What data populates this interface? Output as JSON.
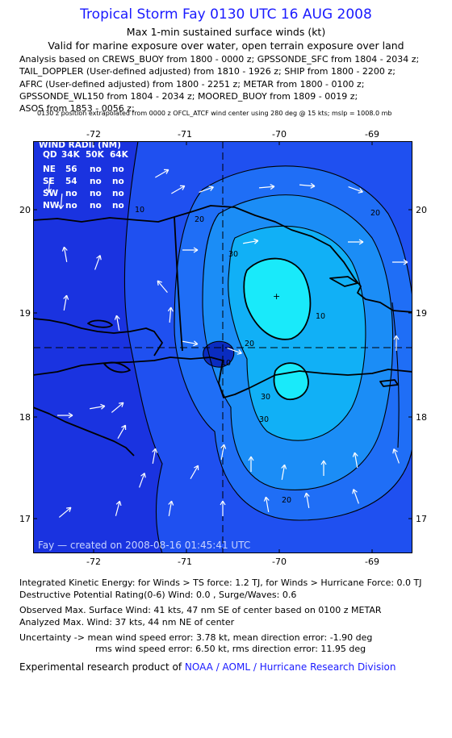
{
  "header": {
    "title": "Tropical Storm Fay 0130 UTC 16 AUG 2008",
    "subtitle1": "Max 1-min sustained surface winds (kt)",
    "subtitle2": "Valid for marine exposure over water, open terrain exposure over land"
  },
  "analysis_lines": [
    "Analysis based on  CREWS_BUOY from 1800 - 0000 z;  GPSSONDE_SFC from 1804 - 2034 z;",
    "TAIL_DOPPLER (User-defined adjusted) from 1810 - 1926 z;  SHIP from 1800 - 2200 z;",
    "AFRC (User-defined adjusted) from 1800 - 2251 z;  METAR from 1800 - 0100 z;",
    "GPSSONDE_WL150 from 1804 - 2034 z;  MOORED_BUOY from 1809 - 0019 z;",
    "ASOS from 1853 - 0056 z;"
  ],
  "position_note": "0130 z position extrapolated from 0000 z OFCL_ATCF wind center using 280 deg @ 15 kts; mslp = 1008.0 mb",
  "map": {
    "x_ticks": [
      "-72",
      "-71",
      "-70",
      "-69"
    ],
    "y_ticks": [
      "20",
      "19",
      "18",
      "17"
    ],
    "contour_labels": [
      "10",
      "20",
      "30",
      "10",
      "20",
      "20",
      "30",
      "10",
      "20",
      "30"
    ],
    "credit_line": "Fay — created on 2008-08-16 01:45:41 UTC",
    "colors": {
      "level0": "#1a33e0",
      "level1": "#1f50f0",
      "level2": "#1f6ef6",
      "level3": "#1b8df6",
      "level4": "#11b0f6",
      "level5": "#19eafa",
      "center": "#0a2cc0"
    },
    "wind_radii": {
      "title": "WIND RADII (NM)",
      "header": [
        "QD",
        "34K",
        "50K",
        "64K"
      ],
      "rows": [
        [
          "NE",
          "56",
          "no",
          "no"
        ],
        [
          "SE",
          "54",
          "no",
          "no"
        ],
        [
          "SW",
          "no",
          "no",
          "no"
        ],
        [
          "NW",
          "no",
          "no",
          "no"
        ]
      ]
    }
  },
  "stats": {
    "ike": "Integrated Kinetic Energy:  for Winds > TS force: 1.2 TJ,  for Winds > Hurricane Force: 0.0 TJ",
    "dpr": "Destructive Potential Rating(0-6)   Wind: 0.0 , Surge/Waves: 0.6",
    "obs_max": "Observed Max. Surface Wind: 41 kts, 47 nm SE of center based on 0100 z METAR",
    "analyzed_max": "Analyzed Max. Wind: 37 kts, 44 nm NE of center",
    "uncertainty1": "Uncertainty -> mean wind speed error: 3.78 kt,   mean direction error:  -1.90 deg",
    "uncertainty2": "rms wind speed error: 6.50 kt,   rms direction error: 11.95 deg"
  },
  "credit": {
    "prefix": "Experimental research product of ",
    "org": "NOAA / AOML / Hurricane Research Division"
  }
}
